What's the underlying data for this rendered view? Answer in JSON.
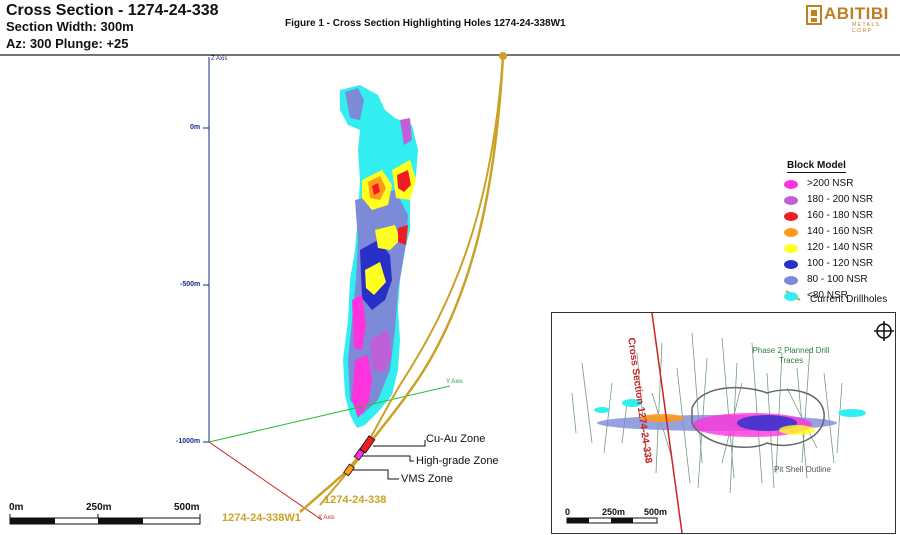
{
  "header": {
    "title": "Cross Section - 1274-24-338",
    "section_width": "Section Width: 300m",
    "azimuth": "Az: 300 Plunge: +25"
  },
  "figure_caption": "Figure 1 - Cross Section Highlighting Holes 1274-24-338W1",
  "logo": {
    "name": "ABITIBI",
    "subtitle": "METALS CORP",
    "color": "#c07d22"
  },
  "axes": {
    "z_axis_name": "Z Axis",
    "y_axis_name": "Y Axis",
    "x_axis_name": "X Axis",
    "z_ticks": [
      "0m",
      "-500m",
      "-1000m"
    ]
  },
  "zones": [
    "Cu-Au Zone",
    "High-grade Zone",
    "VMS Zone"
  ],
  "holes": [
    "1274-24-338",
    "1274-24-338W1"
  ],
  "legend": {
    "title": "Block Model",
    "items": [
      {
        "label": ">200 NSR",
        "color": "#ff33dd"
      },
      {
        "label": "180 - 200 NSR",
        "color": "#c060d8"
      },
      {
        "label": "160 - 180 NSR",
        "color": "#ee1c24"
      },
      {
        "label": "140 - 160 NSR",
        "color": "#ff9a1a"
      },
      {
        "label": "120 - 140 NSR",
        "color": "#ffff20"
      },
      {
        "label": "100 - 120 NSR",
        "color": "#2830c8"
      },
      {
        "label": "80 - 100 NSR",
        "color": "#7c8ad8"
      },
      {
        "label": "<80 NSR",
        "color": "#33eef0"
      }
    ],
    "drillholes_label": "Current Drillholes",
    "drillhole_color": "#c9a227"
  },
  "scale_bar": [
    "0m",
    "250m",
    "500m"
  ],
  "inset": {
    "section_label": "Cross Section 1274-24-338",
    "phase2_label": "Phase 2 Planned Drill Traces",
    "pit_shell_label": "Pit Shell Outline",
    "scale": [
      "0",
      "250m",
      "500m"
    ]
  }
}
